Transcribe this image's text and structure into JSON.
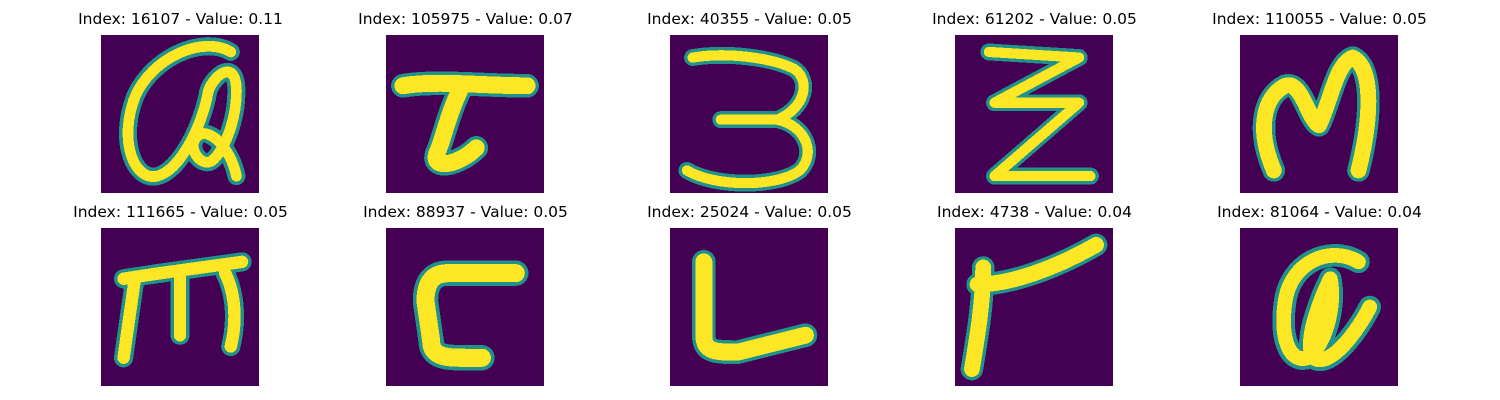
{
  "colors": {
    "background": "#440154",
    "stroke": "#fde725",
    "edge": "#21918c"
  },
  "panels": [
    {
      "title": "Index: 16107 - Value: 0.11",
      "index": 16107,
      "value": 0.11,
      "glyph": "handwritten-a-glyph"
    },
    {
      "title": "Index: 105975 - Value: 0.07",
      "index": 105975,
      "value": 0.07,
      "glyph": "handwritten-t-glyph"
    },
    {
      "title": "Index: 40355 - Value: 0.05",
      "index": 40355,
      "value": 0.05,
      "glyph": "handwritten-3-glyph"
    },
    {
      "title": "Index: 61202 - Value: 0.05",
      "index": 61202,
      "value": 0.05,
      "glyph": "handwritten-z-glyph"
    },
    {
      "title": "Index: 110055 - Value: 0.05",
      "index": 110055,
      "value": 0.05,
      "glyph": "handwritten-m-glyph"
    },
    {
      "title": "Index: 111665 - Value: 0.05",
      "index": 111665,
      "value": 0.05,
      "glyph": "handwritten-m-glyph"
    },
    {
      "title": "Index: 88937 - Value: 0.05",
      "index": 88937,
      "value": 0.05,
      "glyph": "handwritten-c-glyph"
    },
    {
      "title": "Index: 25024 - Value: 0.05",
      "index": 25024,
      "value": 0.05,
      "glyph": "handwritten-l-glyph"
    },
    {
      "title": "Index: 4738 - Value: 0.04",
      "index": 4738,
      "value": 0.04,
      "glyph": "handwritten-r-glyph"
    },
    {
      "title": "Index: 81064 - Value: 0.04",
      "index": 81064,
      "value": 0.04,
      "glyph": "handwritten-a-glyph"
    }
  ]
}
